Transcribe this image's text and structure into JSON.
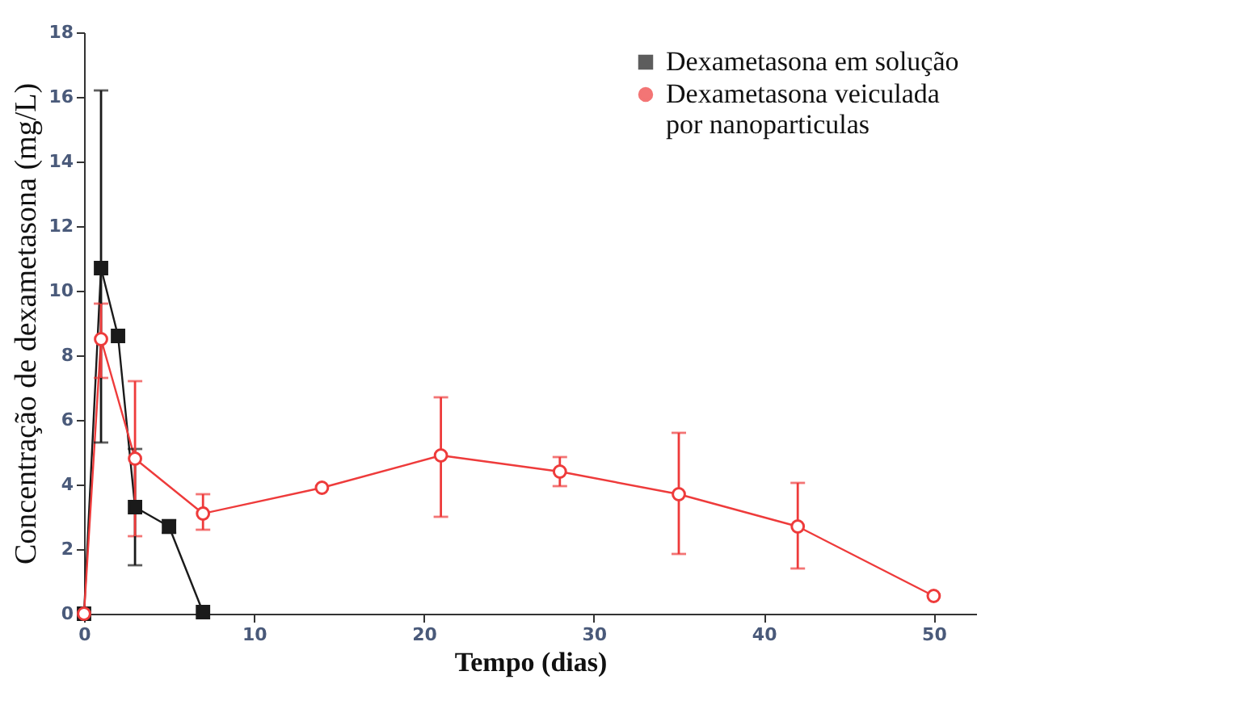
{
  "chart_data": {
    "type": "line",
    "xlabel": "Tempo (dias)",
    "ylabel": "Concentração de dexametasona (mg/L)",
    "xlim": [
      0,
      52.5
    ],
    "xticks": [
      0,
      10,
      20,
      30,
      40,
      50
    ],
    "ylim": [
      0,
      18
    ],
    "yticks": [
      0,
      2,
      4,
      6,
      8,
      10,
      12,
      14,
      16,
      18
    ],
    "grid": false,
    "legend": "top right",
    "series": [
      {
        "name": "Dexametasona em solução",
        "color": "#1a1a1a",
        "marker": "square",
        "x": [
          0,
          1,
          2,
          3,
          5,
          7
        ],
        "values": [
          0,
          10.7,
          8.6,
          3.3,
          2.7,
          0.05
        ],
        "errors": [
          null,
          [
            5.3,
            16.2
          ],
          null,
          [
            1.5,
            5.1
          ],
          [
            2.5,
            2.9
          ],
          null
        ]
      },
      {
        "name": "Dexametasona veiculada por nanoparticulas",
        "color": "#ee3b3b",
        "marker": "circle",
        "x": [
          0,
          1,
          3,
          7,
          14,
          21,
          28,
          35,
          42,
          50
        ],
        "values": [
          0,
          8.5,
          4.8,
          3.1,
          3.9,
          4.9,
          4.4,
          3.7,
          2.7,
          0.55
        ],
        "errors": [
          null,
          [
            7.3,
            9.6
          ],
          [
            2.4,
            7.2
          ],
          [
            2.6,
            3.7
          ],
          null,
          [
            3.0,
            6.7
          ],
          [
            3.95,
            4.85
          ],
          [
            1.85,
            5.6
          ],
          [
            1.4,
            4.05
          ],
          null
        ]
      }
    ]
  }
}
